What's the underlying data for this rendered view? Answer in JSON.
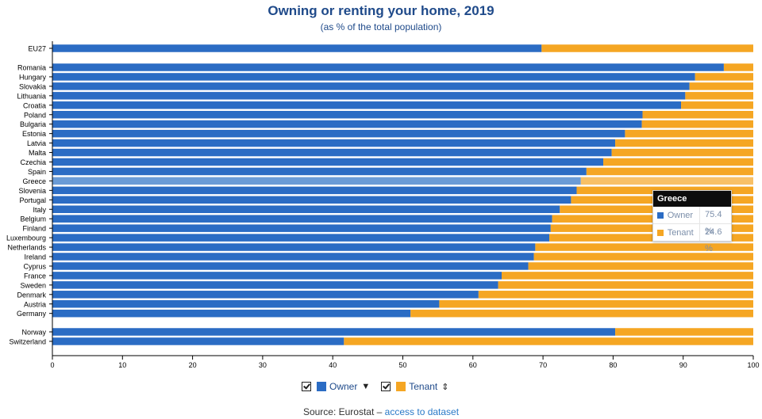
{
  "chart_data": {
    "type": "bar",
    "orientation": "horizontal",
    "stacked": true,
    "title": "Owning or renting your home, 2019",
    "subtitle": "(as % of the total population)",
    "xlim": [
      0,
      100
    ],
    "x_ticks": [
      "0",
      "10",
      "20",
      "30",
      "40",
      "50",
      "60",
      "70",
      "80",
      "90",
      "100"
    ],
    "groups": [
      {
        "categories": [
          "EU27"
        ]
      },
      {
        "categories": [
          "Romania",
          "Hungary",
          "Slovakia",
          "Lithuania",
          "Croatia",
          "Poland",
          "Bulgaria",
          "Estonia",
          "Latvia",
          "Malta",
          "Czechia",
          "Spain",
          "Greece",
          "Slovenia",
          "Portugal",
          "Italy",
          "Belgium",
          "Finland",
          "Luxembourg",
          "Netherlands",
          "Ireland",
          "Cyprus",
          "France",
          "Sweden",
          "Denmark",
          "Austria",
          "Germany"
        ]
      },
      {
        "categories": [
          "Norway",
          "Switzerland"
        ]
      }
    ],
    "categories": [
      "EU27",
      "Romania",
      "Hungary",
      "Slovakia",
      "Lithuania",
      "Croatia",
      "Poland",
      "Bulgaria",
      "Estonia",
      "Latvia",
      "Malta",
      "Czechia",
      "Spain",
      "Greece",
      "Slovenia",
      "Portugal",
      "Italy",
      "Belgium",
      "Finland",
      "Luxembourg",
      "Netherlands",
      "Ireland",
      "Cyprus",
      "France",
      "Sweden",
      "Denmark",
      "Austria",
      "Germany",
      "Norway",
      "Switzerland"
    ],
    "series": [
      {
        "name": "Owner",
        "color": "#2b6cc4",
        "values": [
          69.8,
          95.8,
          91.7,
          90.9,
          90.3,
          89.7,
          84.2,
          84.1,
          81.7,
          80.3,
          79.8,
          78.6,
          76.2,
          75.4,
          74.8,
          74.0,
          72.4,
          71.3,
          71.1,
          70.9,
          68.9,
          68.7,
          67.9,
          64.1,
          63.6,
          60.8,
          55.2,
          51.1,
          80.3,
          41.6
        ]
      },
      {
        "name": "Tenant",
        "color": "#f5a623",
        "values": [
          30.2,
          4.2,
          8.3,
          9.1,
          9.7,
          10.3,
          15.8,
          15.9,
          18.3,
          19.7,
          20.2,
          21.4,
          23.8,
          24.6,
          25.2,
          26.0,
          27.6,
          28.7,
          28.9,
          29.1,
          31.1,
          31.3,
          32.1,
          35.9,
          36.4,
          39.2,
          44.8,
          48.9,
          19.7,
          58.4
        ]
      }
    ],
    "highlighted": "Greece",
    "highlight_colors": {
      "Owner": "#6a9bd6",
      "Tenant": "#f8c066"
    },
    "grid": false,
    "legend_position": "bottom"
  },
  "tooltip": {
    "title": "Greece",
    "rows": [
      {
        "label": "Owner",
        "value": "75.4 %",
        "color": "#2b6cc4"
      },
      {
        "label": "Tenant",
        "value": "24.6 %",
        "color": "#f5a623"
      }
    ]
  },
  "legend": {
    "items": [
      {
        "label": "Owner",
        "color": "#2b6cc4",
        "sort_icon": "sort-down-icon"
      },
      {
        "label": "Tenant",
        "color": "#f5a623",
        "sort_icon": "sort-both-icon"
      }
    ]
  },
  "source": {
    "prefix": "Source: Eurostat – ",
    "link_text": "access to dataset"
  }
}
